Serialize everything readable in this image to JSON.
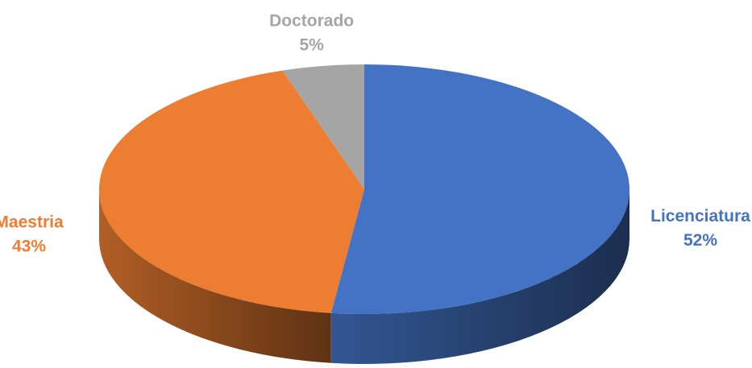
{
  "chart_data": {
    "type": "pie",
    "categories": [
      "Licenciatura",
      "Maestria",
      "Doctorado"
    ],
    "values": [
      52,
      43,
      5
    ],
    "value_labels": [
      "52%",
      "43%",
      "5%"
    ],
    "colors": [
      "#4472c4",
      "#ed7d31",
      "#a5a5a5"
    ]
  }
}
